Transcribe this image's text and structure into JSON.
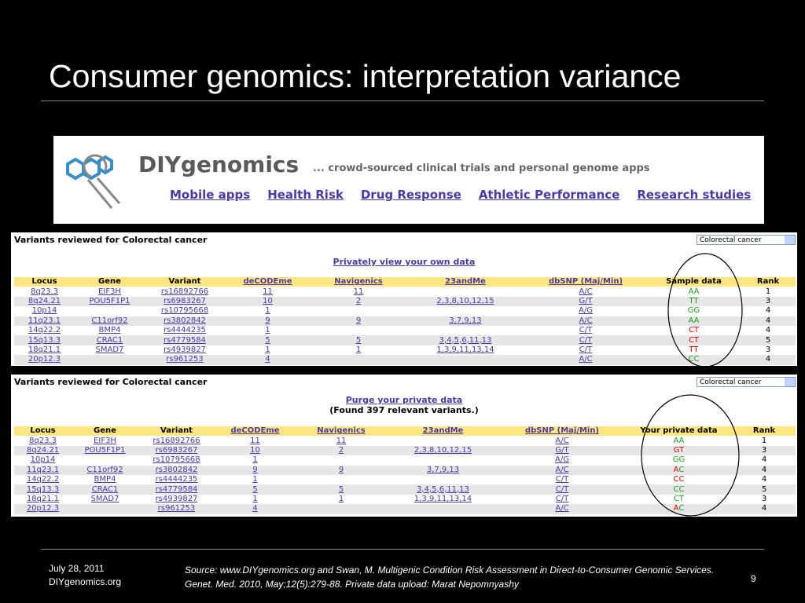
{
  "title": "Consumer genomics: interpretation variance",
  "banner": {
    "brand": "DIYgenomics",
    "tagline": "... crowd-sourced clinical trials and personal genome apps",
    "nav": [
      "Mobile apps",
      "Health Risk",
      "Drug Response",
      "Athletic Performance",
      "Research studies"
    ]
  },
  "table1": {
    "heading": "Variants reviewed for Colorectal cancer",
    "dropdown": "Colorectal cancer",
    "link": "Privately view your own data",
    "columns": [
      "Locus",
      "Gene",
      "Variant",
      "deCODEme",
      "Navigenics",
      "23andMe",
      "dbSNP (Maj/Min)",
      "Sample data",
      "Rank"
    ],
    "rows": [
      [
        "8q23.3",
        "EIF3H",
        "rs16892766",
        "11",
        "11",
        null,
        "A/C",
        "AA",
        "1"
      ],
      [
        "8q24.21",
        "POU5F1P1",
        "rs6983267",
        "10",
        "2",
        "2,3,8,10,12,15",
        "G/T",
        "TT",
        "3"
      ],
      [
        "10p14",
        null,
        "rs10795668",
        "1",
        null,
        null,
        "A/G",
        "GG",
        "4"
      ],
      [
        "11q23.1",
        "C11orf92",
        "rs3802842",
        "9",
        "9",
        "3,7,9,13",
        "A/C",
        "AA",
        "4"
      ],
      [
        "14q22.2",
        "BMP4",
        "rs4444235",
        "1",
        null,
        null,
        "C/T",
        "CT",
        "4"
      ],
      [
        "15q13.3",
        "CRAC1",
        "rs4779584",
        "5",
        "5",
        "3,4,5,6,11,13",
        "C/T",
        "CT",
        "5"
      ],
      [
        "18q21.1",
        "SMAD7",
        "rs4939827",
        "1",
        "1",
        "1,3,9,11,13,14",
        "C/T",
        "TT",
        "3"
      ],
      [
        "20p12.3",
        null,
        "rs961253",
        "4",
        null,
        null,
        "A/C",
        "CC",
        "4"
      ]
    ],
    "genotype_colors": [
      [
        "#1a9a1a",
        "#1a9a1a"
      ],
      [
        "#1a9a1a",
        "#1a9a1a"
      ],
      [
        "#1a9a1a",
        "#1a9a1a"
      ],
      [
        "#1a9a1a",
        "#1a9a1a"
      ],
      [
        "#e00000",
        "#e00000"
      ],
      [
        "#e00000",
        "#e00000"
      ],
      [
        "#e00000",
        "#e00000"
      ],
      [
        "#1a9a1a",
        "#1a9a1a"
      ]
    ]
  },
  "table2": {
    "heading": "Variants reviewed for Colorectal cancer",
    "dropdown": "Colorectal cancer",
    "link": "Purge your private data",
    "note": "(Found 397 relevant variants.)",
    "columns": [
      "Locus",
      "Gene",
      "Variant",
      "deCODEme",
      "Navigenics",
      "23andMe",
      "dbSNP (Maj/Min)",
      "Your private data",
      "Rank"
    ],
    "rows": [
      [
        "8q23.3",
        "EIF3H",
        "rs16892766",
        "11",
        "11",
        null,
        "A/C",
        "AA",
        "1"
      ],
      [
        "8q24.21",
        "POU5F1P1",
        "rs6983267",
        "10",
        "2",
        "2,3,8,10,12,15",
        "G/T",
        "GT",
        "3"
      ],
      [
        "10p14",
        null,
        "rs10795668",
        "1",
        null,
        null,
        "A/G",
        "GG",
        "4"
      ],
      [
        "11q23.1",
        "C11orf92",
        "rs3802842",
        "9",
        "9",
        "3,7,9,13",
        "A/C",
        "AC",
        "4"
      ],
      [
        "14q22.2",
        "BMP4",
        "rs4444235",
        "1",
        null,
        null,
        "C/T",
        "CC",
        "4"
      ],
      [
        "15q13.3",
        "CRAC1",
        "rs4779584",
        "5",
        "5",
        "3,4,5,6,11,13",
        "C/T",
        "CC",
        "5"
      ],
      [
        "18q21.1",
        "SMAD7",
        "rs4939827",
        "1",
        "1",
        "1,3,9,11,13,14",
        "C/T",
        "CT",
        "3"
      ],
      [
        "20p12.3",
        null,
        "rs961253",
        "4",
        null,
        null,
        "A/C",
        "AC",
        "4"
      ]
    ],
    "genotype_colors": [
      [
        "#1a9a1a",
        "#1a9a1a"
      ],
      [
        "#e00000",
        "#e00000"
      ],
      [
        "#1a9a1a",
        "#1a9a1a"
      ],
      [
        "#e00000",
        "#1a9a1a"
      ],
      [
        "#e00000",
        "#e00000"
      ],
      [
        "#1a9a1a",
        "#1a9a1a"
      ],
      [
        "#1a9a1a",
        "#1a9a1a"
      ],
      [
        "#e00000",
        "#1a9a1a"
      ]
    ]
  },
  "footer": {
    "date": "July 28, 2011",
    "site": "DIYgenomics.org",
    "source": "Source: www.DIYgenomics.org and Swan, M. Multigenic Condition Risk Assessment in Direct-to-Consumer Genomic Services. Genet. Med. 2010, May;12(5):279-88. Private data upload: Marat Nepomnyashy",
    "page": "9"
  }
}
